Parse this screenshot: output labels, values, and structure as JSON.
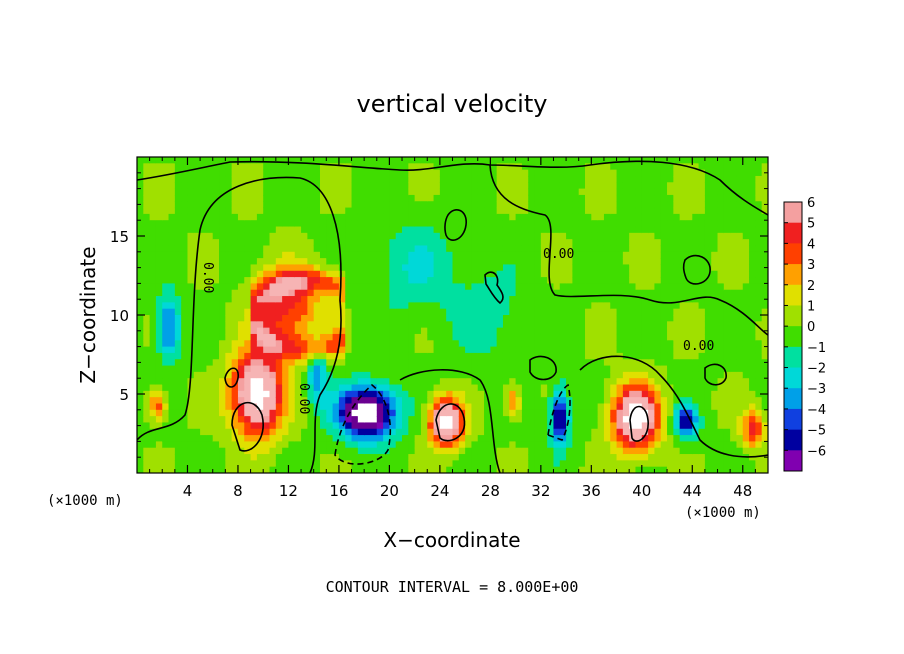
{
  "chart_data": {
    "type": "heatmap",
    "title": "vertical velocity",
    "xlabel": "X−coordinate",
    "ylabel": "Z−coordinate",
    "x_unit_left": "(×1000 m)",
    "x_unit_right": "(×1000 m)",
    "xlim": [
      0,
      50
    ],
    "ylim": [
      0,
      20
    ],
    "xticks": [
      4,
      8,
      12,
      16,
      20,
      24,
      28,
      32,
      36,
      40,
      44,
      48
    ],
    "yticks": [
      5,
      10,
      15
    ],
    "colorbar": {
      "levels": [
        6,
        5,
        4,
        3,
        2,
        1,
        0,
        -1,
        -2,
        -3,
        -4,
        -5,
        -6
      ],
      "labels": [
        "6",
        "5",
        "4",
        "3",
        "2",
        "1",
        "0",
        "−1",
        "−2",
        "−3",
        "−4",
        "−5",
        "−6"
      ],
      "colors": [
        "#f4a0a0",
        "#f02020",
        "#ff4000",
        "#ffa000",
        "#e0e000",
        "#a0e000",
        "#40dd00",
        "#00e0a0",
        "#00d8d8",
        "#00a0e8",
        "#1040e0",
        "#0000a0",
        "#8000b0"
      ]
    },
    "contour_labels": [
      "0.00",
      "0.00",
      "0.00",
      "0.00"
    ],
    "footer": "CONTOUR INTERVAL = 8.000E+00",
    "features": [
      {
        "kind": "updraft",
        "x": 9.5,
        "z": 5,
        "amp": 9,
        "sx": 2.0,
        "sz": 2.6
      },
      {
        "kind": "updraft",
        "x": 12,
        "z": 10.5,
        "amp": 4.5,
        "sx": 2.5,
        "sz": 2.5
      },
      {
        "kind": "updraft",
        "x": 24.5,
        "z": 3.2,
        "amp": 9,
        "sx": 1.3,
        "sz": 1.5
      },
      {
        "kind": "updraft",
        "x": 39.5,
        "z": 3.5,
        "amp": 9,
        "sx": 1.8,
        "sz": 2.0
      },
      {
        "kind": "updraft",
        "x": 1.6,
        "z": 4.3,
        "amp": 4,
        "sx": 0.7,
        "sz": 1.0
      },
      {
        "kind": "updraft",
        "x": 48.8,
        "z": 2.8,
        "amp": 4.5,
        "sx": 0.9,
        "sz": 1.2
      },
      {
        "kind": "updraft",
        "x": 29.8,
        "z": 4.5,
        "amp": 3.5,
        "sx": 0.6,
        "sz": 1.0
      },
      {
        "kind": "downdraft",
        "x": 18.2,
        "z": 3.8,
        "amp": -10,
        "sx": 2.2,
        "sz": 1.6
      },
      {
        "kind": "downdraft",
        "x": 33.5,
        "z": 3.5,
        "amp": -6.5,
        "sx": 0.7,
        "sz": 1.8
      },
      {
        "kind": "downdraft",
        "x": 43.5,
        "z": 3.2,
        "amp": -5.5,
        "sx": 0.9,
        "sz": 1.0
      },
      {
        "kind": "downdraft",
        "x": 2.5,
        "z": 9.2,
        "amp": -4.5,
        "sx": 0.9,
        "sz": 2.0
      },
      {
        "kind": "downdraft",
        "x": 14.3,
        "z": 6.2,
        "amp": -3.5,
        "sx": 0.8,
        "sz": 1.8
      },
      {
        "kind": "downdraft",
        "x": 22,
        "z": 13,
        "amp": -1.8,
        "sx": 3.5,
        "sz": 3.0
      },
      {
        "kind": "downdraft",
        "x": 28,
        "z": 10,
        "amp": -1.4,
        "sx": 3.0,
        "sz": 3.0
      }
    ]
  }
}
